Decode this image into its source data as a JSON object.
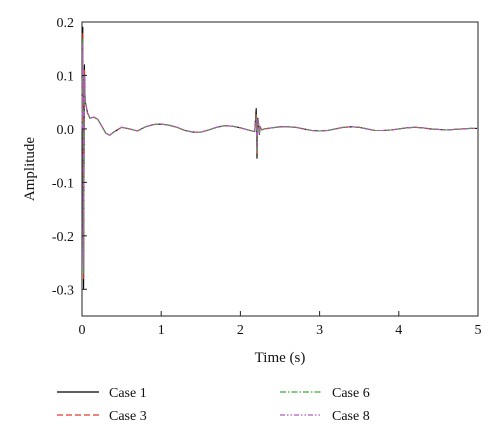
{
  "chart_data": {
    "type": "line",
    "title": "",
    "xlabel": "Time (s)",
    "ylabel": "Amplitude",
    "xlim": [
      0,
      5
    ],
    "ylim": [
      -0.35,
      0.2
    ],
    "x_ticks": [
      0,
      1,
      2,
      3,
      4,
      5
    ],
    "x_tick_labels": [
      "0",
      "1",
      "2",
      "3",
      "4",
      "5"
    ],
    "y_ticks": [
      0.2,
      0.1,
      0.0,
      -0.1,
      -0.2,
      -0.3
    ],
    "y_tick_labels": [
      "0.2",
      "0.1",
      "0.0",
      "-0.1",
      "-0.2",
      "-0.3"
    ],
    "grid": false,
    "legend_position": "bottom",
    "x": [
      0,
      0.01,
      0.02,
      0.03,
      0.04,
      0.05,
      0.07,
      0.1,
      0.15,
      0.2,
      0.25,
      0.3,
      0.35,
      0.4,
      0.5,
      0.6,
      0.7,
      0.8,
      0.9,
      1.0,
      1.1,
      1.2,
      1.3,
      1.4,
      1.5,
      1.6,
      1.7,
      1.8,
      1.9,
      2.0,
      2.1,
      2.18,
      2.2,
      2.21,
      2.22,
      2.23,
      2.24,
      2.25,
      2.27,
      2.3,
      2.4,
      2.5,
      2.6,
      2.7,
      2.8,
      2.9,
      3.0,
      3.1,
      3.2,
      3.3,
      3.4,
      3.5,
      3.6,
      3.7,
      3.8,
      3.9,
      4.0,
      4.1,
      4.2,
      4.3,
      4.4,
      4.5,
      4.6,
      4.7,
      4.8,
      4.9,
      5.0
    ],
    "series": [
      {
        "name": "Case 1",
        "color": "#000000",
        "dash": "solid",
        "values": [
          0.0,
          0.19,
          -0.3,
          0.12,
          0.05,
          0.045,
          0.03,
          0.02,
          0.022,
          0.018,
          0.005,
          -0.008,
          -0.012,
          -0.006,
          0.003,
          0.0,
          -0.004,
          0.004,
          0.008,
          0.009,
          0.007,
          0.003,
          -0.003,
          -0.006,
          -0.006,
          -0.002,
          0.003,
          0.006,
          0.005,
          0.002,
          -0.002,
          -0.005,
          0.038,
          -0.055,
          0.02,
          0.01,
          -0.01,
          0.004,
          -0.002,
          0.0,
          0.002,
          0.004,
          0.004,
          0.003,
          0.0,
          -0.003,
          -0.004,
          -0.003,
          0.0,
          0.003,
          0.004,
          0.003,
          0.0,
          -0.003,
          -0.003,
          -0.002,
          0.0,
          0.002,
          0.003,
          0.002,
          0.0,
          -0.001,
          -0.002,
          -0.001,
          0.0,
          0.001,
          0.001
        ]
      },
      {
        "name": "Case 3",
        "color": "#e03b2a",
        "dash": "dashed",
        "values": [
          0.0,
          0.18,
          -0.28,
          0.11,
          0.05,
          0.044,
          0.03,
          0.02,
          0.022,
          0.018,
          0.005,
          -0.008,
          -0.012,
          -0.006,
          0.003,
          0.0,
          -0.004,
          0.004,
          0.008,
          0.009,
          0.007,
          0.003,
          -0.003,
          -0.006,
          -0.006,
          -0.002,
          0.003,
          0.006,
          0.005,
          0.002,
          -0.002,
          -0.005,
          0.03,
          -0.045,
          0.018,
          0.009,
          -0.009,
          0.004,
          -0.002,
          0.0,
          0.002,
          0.004,
          0.004,
          0.003,
          0.0,
          -0.003,
          -0.004,
          -0.003,
          0.0,
          0.003,
          0.004,
          0.003,
          0.0,
          -0.003,
          -0.003,
          -0.002,
          0.0,
          0.002,
          0.003,
          0.002,
          0.0,
          -0.001,
          -0.002,
          -0.001,
          0.0,
          0.001,
          0.001
        ]
      },
      {
        "name": "Case 6",
        "color": "#3aa63a",
        "dash": "dash-dot",
        "values": [
          0.0,
          0.17,
          -0.27,
          0.1,
          0.05,
          0.044,
          0.03,
          0.02,
          0.022,
          0.018,
          0.005,
          -0.008,
          -0.012,
          -0.006,
          0.003,
          0.0,
          -0.004,
          0.004,
          0.008,
          0.009,
          0.007,
          0.003,
          -0.003,
          -0.006,
          -0.006,
          -0.002,
          0.003,
          0.006,
          0.005,
          0.002,
          -0.002,
          -0.005,
          0.025,
          -0.04,
          0.016,
          0.008,
          -0.008,
          0.004,
          -0.002,
          0.0,
          0.002,
          0.004,
          0.004,
          0.003,
          0.0,
          -0.003,
          -0.004,
          -0.003,
          0.0,
          0.003,
          0.004,
          0.003,
          0.0,
          -0.003,
          -0.003,
          -0.002,
          0.0,
          0.002,
          0.003,
          0.002,
          0.0,
          -0.001,
          -0.002,
          -0.001,
          0.0,
          0.001,
          0.001
        ]
      },
      {
        "name": "Case 8",
        "color": "#b25bc4",
        "dash": "dash-dot-dot",
        "values": [
          0.0,
          0.16,
          -0.26,
          0.1,
          0.05,
          0.044,
          0.03,
          0.02,
          0.022,
          0.018,
          0.005,
          -0.008,
          -0.012,
          -0.006,
          0.003,
          0.0,
          -0.004,
          0.004,
          0.008,
          0.009,
          0.007,
          0.003,
          -0.003,
          -0.006,
          -0.006,
          -0.002,
          0.003,
          0.006,
          0.005,
          0.002,
          -0.002,
          -0.005,
          0.022,
          -0.035,
          0.014,
          0.007,
          -0.007,
          0.004,
          -0.002,
          0.0,
          0.002,
          0.004,
          0.004,
          0.003,
          0.0,
          -0.003,
          -0.004,
          -0.003,
          0.0,
          0.003,
          0.004,
          0.003,
          0.0,
          -0.003,
          -0.003,
          -0.002,
          0.0,
          0.002,
          0.003,
          0.002,
          0.0,
          -0.001,
          -0.002,
          -0.001,
          0.0,
          0.001,
          0.001
        ]
      }
    ]
  }
}
